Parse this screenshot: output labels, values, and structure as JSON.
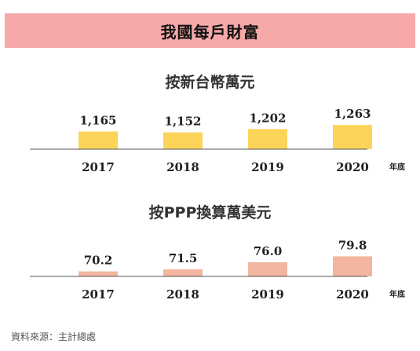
{
  "header": {
    "title": "我國每戶財富"
  },
  "source": "資料來源：主計總處",
  "chart_data": [
    {
      "type": "bar",
      "title": "按新台幣萬元",
      "categories": [
        "2017",
        "2018",
        "2019",
        "2020"
      ],
      "values": [
        1165,
        1152,
        1202,
        1263
      ],
      "value_labels": [
        "1,165",
        "1,152",
        "1,202",
        "1,263"
      ],
      "x_unit": "年底",
      "color": "#fcd45a",
      "axis_color": "#555555",
      "ylim": [
        900,
        1300
      ],
      "grid": false,
      "legend": "none"
    },
    {
      "type": "bar",
      "title": "按PPP換算萬美元",
      "categories": [
        "2017",
        "2018",
        "2019",
        "2020"
      ],
      "values": [
        70.2,
        71.5,
        76.0,
        79.8
      ],
      "value_labels": [
        "70.2",
        "71.5",
        "76.0",
        "79.8"
      ],
      "x_unit": "年底",
      "color": "#f2b6a0",
      "axis_color": "#555555",
      "ylim": [
        67,
        81
      ],
      "grid": false,
      "legend": "none"
    }
  ]
}
